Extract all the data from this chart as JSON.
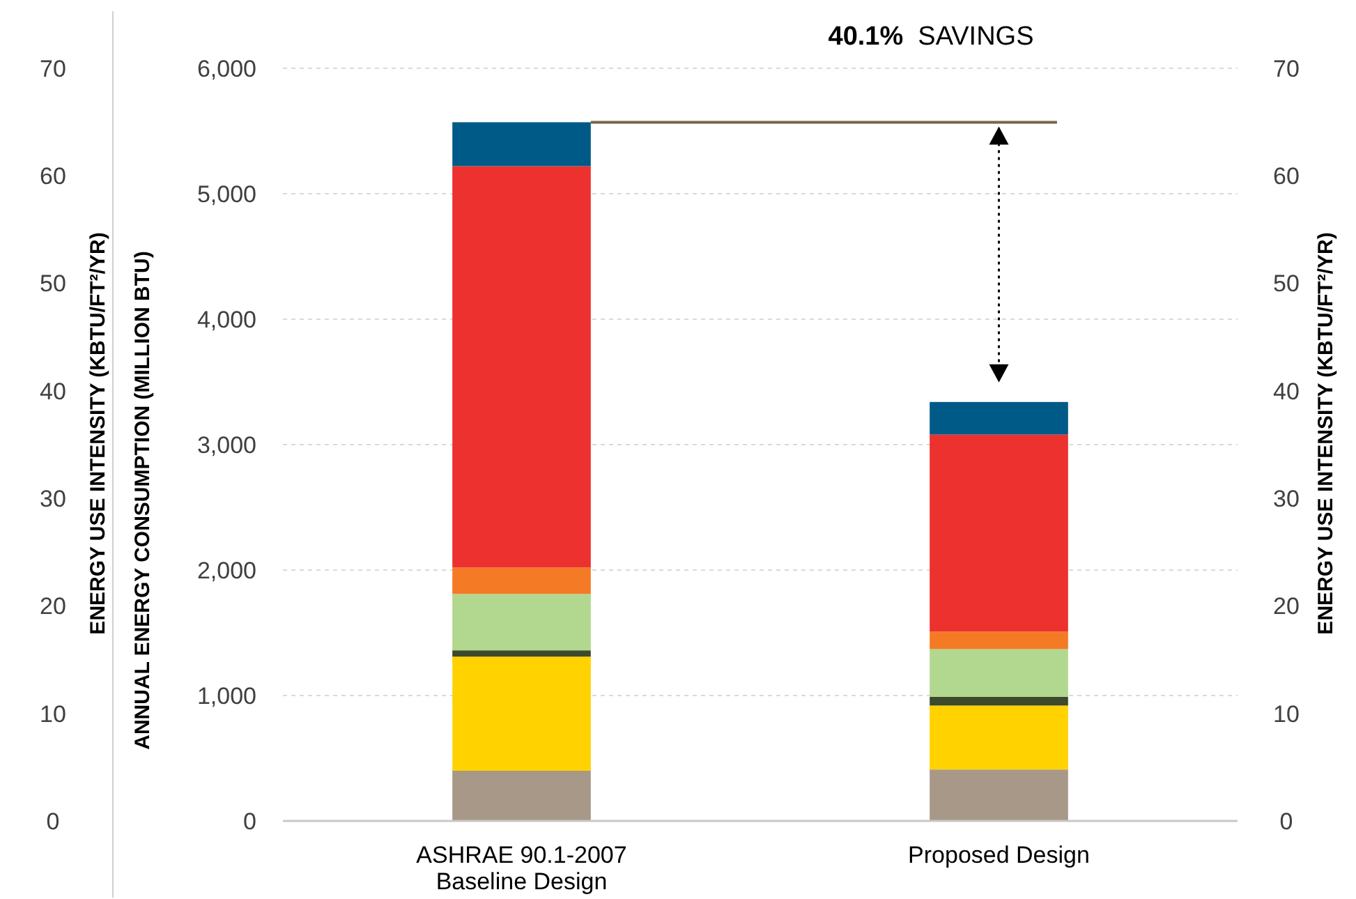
{
  "chart_data": {
    "type": "bar",
    "stacked": true,
    "ylabel": "ANNUAL ENERGY CONSUMPTION (MILLION BTU)",
    "y2label": "ENERGY USE INTENSITY (KBTU/FT²/YR)",
    "y3label": "ENERGY USE INTENSITY (KBTU/FT²/YR)",
    "categories": [
      "ASHRAE 90.1-2007\nBaseline Design",
      "Proposed Design"
    ],
    "ylim": [
      0,
      6000
    ],
    "yticks": [
      {
        "value": 0,
        "label": "0"
      },
      {
        "value": 1000,
        "label": "1,000"
      },
      {
        "value": 2000,
        "label": "2,000"
      },
      {
        "value": 3000,
        "label": "3,000"
      },
      {
        "value": 4000,
        "label": "4,000"
      },
      {
        "value": 5000,
        "label": "5,000"
      },
      {
        "value": 6000,
        "label": "6,000"
      }
    ],
    "y2lim": [
      0,
      70
    ],
    "y2ticks": [
      0,
      10,
      20,
      30,
      40,
      50,
      60,
      70
    ],
    "y3lim": [
      0,
      70
    ],
    "y3ticks": [
      0,
      10,
      20,
      30,
      40,
      50,
      60,
      70
    ],
    "grid": "y",
    "series": [
      {
        "color": "#a89888",
        "values": [
          400,
          410
        ]
      },
      {
        "color": "#ffd200",
        "values": [
          910,
          510
        ]
      },
      {
        "color": "#3d4a2a",
        "values": [
          50,
          70
        ]
      },
      {
        "color": "#b2d78e",
        "values": [
          450,
          380
        ]
      },
      {
        "color": "#f47a25",
        "values": [
          210,
          140
        ]
      },
      {
        "color": "#ec312f",
        "values": [
          3200,
          1570
        ]
      },
      {
        "color": "#005a87",
        "values": [
          350,
          260
        ]
      }
    ],
    "ref_lines": [
      {
        "axis": "y",
        "value": 5570,
        "color": "#7a6548"
      }
    ],
    "annotations": [
      "40.1% SAVINGS"
    ]
  }
}
